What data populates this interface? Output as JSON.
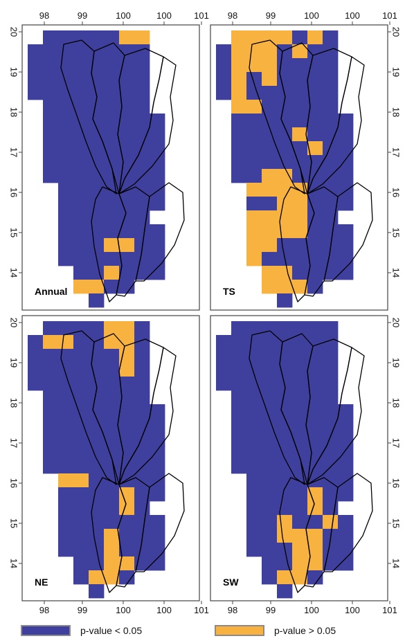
{
  "colors": {
    "significant": "#3f3f9e",
    "not_significant": "#f8b240",
    "border": "#000000"
  },
  "x_ticks": [
    "98",
    "99",
    "100",
    "100",
    "101"
  ],
  "y_ticks": [
    "20",
    "19",
    "18",
    "17",
    "16",
    "15",
    "14"
  ],
  "panels": [
    {
      "label": "Annual",
      "x_ticks_top": true,
      "y_ticks_side": "left",
      "orange_cells": [
        [
          19,
          6
        ],
        [
          19,
          7
        ],
        [
          4,
          5
        ],
        [
          4,
          6
        ],
        [
          2,
          5
        ],
        [
          1,
          3
        ],
        [
          1,
          4
        ]
      ]
    },
    {
      "label": "TS",
      "x_ticks_top": true,
      "y_ticks_side": "right",
      "orange_cells": [
        [
          19,
          1
        ],
        [
          19,
          2
        ],
        [
          19,
          3
        ],
        [
          19,
          4
        ],
        [
          19,
          6
        ],
        [
          18,
          1
        ],
        [
          18,
          2
        ],
        [
          18,
          3
        ],
        [
          18,
          5
        ],
        [
          17,
          1
        ],
        [
          17,
          2
        ],
        [
          17,
          3
        ],
        [
          16,
          1
        ],
        [
          16,
          3
        ],
        [
          15,
          1
        ],
        [
          14,
          1
        ],
        [
          14,
          2
        ],
        [
          12,
          5
        ],
        [
          11,
          6
        ],
        [
          9,
          3
        ],
        [
          9,
          4
        ],
        [
          8,
          2
        ],
        [
          8,
          3
        ],
        [
          8,
          4
        ],
        [
          8,
          5
        ],
        [
          7,
          4
        ],
        [
          7,
          5
        ],
        [
          6,
          2
        ],
        [
          6,
          3
        ],
        [
          6,
          4
        ],
        [
          6,
          5
        ],
        [
          5,
          2
        ],
        [
          5,
          3
        ],
        [
          5,
          4
        ],
        [
          5,
          5
        ],
        [
          4,
          1
        ],
        [
          4,
          2
        ],
        [
          4,
          3
        ],
        [
          3,
          1
        ],
        [
          3,
          2
        ],
        [
          2,
          1
        ],
        [
          2,
          2
        ],
        [
          2,
          3
        ],
        [
          2,
          4
        ],
        [
          1,
          3
        ],
        [
          1,
          4
        ],
        [
          1,
          5
        ]
      ]
    },
    {
      "label": "NE",
      "x_ticks_top": false,
      "y_ticks_side": "left",
      "orange_cells": [
        [
          19,
          5
        ],
        [
          19,
          6
        ],
        [
          18,
          1
        ],
        [
          18,
          2
        ],
        [
          18,
          5
        ],
        [
          18,
          6
        ],
        [
          17,
          6
        ],
        [
          16,
          6
        ],
        [
          12,
          0
        ],
        [
          8,
          2
        ],
        [
          8,
          3
        ],
        [
          7,
          6
        ],
        [
          6,
          6
        ],
        [
          4,
          5
        ],
        [
          3,
          5
        ],
        [
          2,
          5
        ],
        [
          2,
          6
        ],
        [
          1,
          4
        ],
        [
          1,
          5
        ]
      ]
    },
    {
      "label": "SW",
      "x_ticks_top": false,
      "y_ticks_side": "right",
      "orange_cells": [
        [
          7,
          6
        ],
        [
          6,
          6
        ],
        [
          5,
          4
        ],
        [
          5,
          7
        ],
        [
          4,
          4
        ],
        [
          4,
          5
        ],
        [
          4,
          6
        ],
        [
          3,
          5
        ],
        [
          3,
          6
        ],
        [
          2,
          5
        ],
        [
          2,
          6
        ],
        [
          1,
          4
        ],
        [
          1,
          5
        ]
      ]
    }
  ],
  "legend": [
    {
      "label": "p-value < 0.05",
      "color": "#3f3f9e"
    },
    {
      "label": "p-value > 0.05",
      "color": "#f8b240"
    }
  ]
}
